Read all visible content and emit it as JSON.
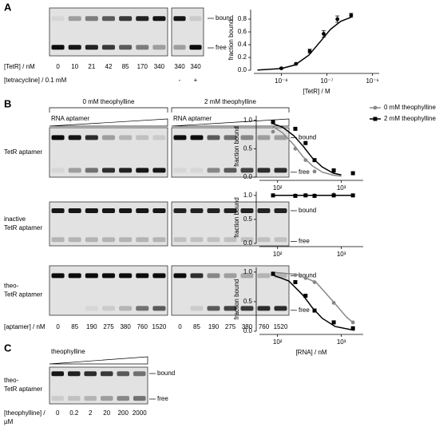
{
  "panel_labels": [
    "A",
    "B",
    "C"
  ],
  "gel_a": {
    "bound": "bound",
    "free": "free",
    "tetr_label": "[TetR] / nM",
    "tetr_lanes": [
      "0",
      "10",
      "21",
      "42",
      "85",
      "170",
      "340",
      "340",
      "340"
    ],
    "tet_label": "[tetracycline] / 0.1 mM",
    "tet_lanes": [
      "-",
      "+"
    ]
  },
  "gel_b": {
    "conditions": [
      "0 mM theophylline",
      "2 mM theophylline"
    ],
    "ramp_label": "RNA aptamer",
    "bound": "bound",
    "free": "free",
    "rows": [
      [
        "TetR aptamer"
      ],
      [
        "inactive",
        "TetR aptamer"
      ],
      [
        "theo-",
        "TetR aptamer"
      ]
    ],
    "lanes_label": "[aptamer] / nM",
    "lanes": [
      "0",
      "85",
      "190",
      "275",
      "380",
      "760",
      "1520"
    ]
  },
  "gel_c": {
    "ramp_label": "theophylline",
    "row": [
      "theo-",
      "TetR aptamer"
    ],
    "bound": "bound",
    "free": "free",
    "lanes_label": [
      "[theophylline] /",
      "µM"
    ],
    "lanes": [
      "0",
      "0.2",
      "2",
      "20",
      "200",
      "2000"
    ]
  },
  "chart_data": [
    {
      "type": "scatter",
      "xlabel": "[TetR] / M",
      "ylabel": "fraction bound",
      "xscale": "log",
      "xlim": [
        2.5e-09,
        1.4e-06
      ],
      "ylim": [
        0,
        0.95
      ],
      "xticks": [
        {
          "value": 1e-08,
          "label": "10⁻⁸"
        },
        {
          "value": 1e-07,
          "label": "10⁻⁷"
        },
        {
          "value": 1e-06,
          "label": "10⁻⁶"
        }
      ],
      "yticks": [
        {
          "value": 0,
          "label": "0.0"
        },
        0.2,
        0.4,
        0.6,
        0.8
      ],
      "x": [
        1e-08,
        2.1e-08,
        4.2e-08,
        8.5e-08,
        1.7e-07,
        3.4e-07
      ],
      "values": [
        0.03,
        0.1,
        0.3,
        0.57,
        0.8,
        0.86
      ],
      "errors": [
        0.01,
        0.01,
        0.03,
        0.05,
        0.05,
        0.03
      ],
      "color": "#000000",
      "marker": "circle",
      "fit": {
        "x": [
          3e-09,
          1e-08,
          2e-08,
          4e-08,
          7e-08,
          1.2e-07,
          2e-07,
          3.4e-07
        ],
        "values": [
          0.003,
          0.026,
          0.083,
          0.235,
          0.44,
          0.64,
          0.765,
          0.83
        ]
      }
    },
    {
      "type": "scatter",
      "ylabel": "fraction bound",
      "xscale": "log",
      "legend": "upper right",
      "xlim": [
        52,
        2200
      ],
      "ylim": [
        0,
        1.08
      ],
      "xticks": [
        {
          "value": 100,
          "label": "10²"
        },
        {
          "value": 1000,
          "label": "10³"
        }
      ],
      "yticks": [
        {
          "value": 0,
          "label": "0.0"
        },
        0.5,
        {
          "value": 1,
          "label": "1.0"
        }
      ],
      "x": [
        85,
        190,
        275,
        380,
        760,
        1520
      ],
      "series": [
        {
          "name": "0 mM theophylline",
          "color": "#888888",
          "marker": "circle",
          "values": [
            0.8,
            0.5,
            0.3,
            0.1,
            0.1,
            0.07
          ],
          "fit": {
            "x": [
              80,
              120,
              180,
              250,
              350,
              500,
              750,
              1000
            ],
            "values": [
              0.91,
              0.78,
              0.57,
              0.36,
              0.2,
              0.09,
              0.035,
              0.018
            ]
          }
        },
        {
          "name": "2 mM theophylline",
          "color": "#000000",
          "marker": "square",
          "values": [
            0.97,
            0.85,
            0.6,
            0.3,
            0.12,
            0.07
          ],
          "fit": {
            "x": [
              80,
              120,
              180,
              250,
              350,
              500,
              750,
              1000
            ],
            "values": [
              0.95,
              0.88,
              0.73,
              0.55,
              0.34,
              0.18,
              0.07,
              0.04
            ]
          }
        }
      ]
    },
    {
      "type": "scatter",
      "ylabel": "fraction bound",
      "xscale": "log",
      "xlim": [
        52,
        2200
      ],
      "ylim": [
        0,
        1.08
      ],
      "xticks": [
        {
          "value": 100,
          "label": "10²"
        },
        {
          "value": 1000,
          "label": "10³"
        }
      ],
      "yticks": [
        {
          "value": 0,
          "label": "0.0"
        },
        0.5,
        {
          "value": 1,
          "label": "1.0"
        }
      ],
      "x": [
        85,
        190,
        275,
        380,
        760,
        1520
      ],
      "series": [
        {
          "color": "#888888",
          "marker": "circle",
          "values": [
            1.0,
            1.0,
            1.0,
            1.0,
            1.02,
            1.0
          ],
          "fit": {
            "x": [
              80,
              1600
            ],
            "values": [
              1.0,
              1.0
            ]
          }
        },
        {
          "color": "#000000",
          "marker": "square",
          "values": [
            1.0,
            0.99,
            1.0,
            0.99,
            1.0,
            1.0
          ],
          "fit": {
            "x": [
              80,
              1600
            ],
            "values": [
              1.0,
              1.0
            ]
          }
        }
      ]
    },
    {
      "type": "scatter",
      "ylabel": "fraction bound",
      "xlabel": "[RNA] / nM",
      "xscale": "log",
      "xlim": [
        52,
        2200
      ],
      "ylim": [
        0,
        1.08
      ],
      "xticks": [
        {
          "value": 100,
          "label": "10²"
        },
        {
          "value": 1000,
          "label": "10³"
        }
      ],
      "yticks": [
        {
          "value": 0,
          "label": "0.0"
        },
        0.5,
        {
          "value": 1,
          "label": "1.0"
        }
      ],
      "x": [
        85,
        190,
        275,
        380,
        760,
        1520
      ],
      "series": [
        {
          "color": "#888888",
          "marker": "circle",
          "values": [
            0.98,
            0.95,
            0.9,
            0.83,
            0.48,
            0.15
          ],
          "fit": {
            "x": [
              80,
              200,
              400,
              750,
              1200,
              1600
            ],
            "values": [
              1.0,
              0.96,
              0.83,
              0.5,
              0.24,
              0.13
            ]
          }
        },
        {
          "color": "#000000",
          "marker": "square",
          "values": [
            0.97,
            0.83,
            0.6,
            0.35,
            0.15,
            0.05
          ],
          "fit": {
            "x": [
              80,
              150,
              250,
              350,
              500,
              800,
              1600
            ],
            "values": [
              0.96,
              0.85,
              0.61,
              0.4,
              0.22,
              0.08,
              0.015
            ]
          }
        }
      ]
    }
  ]
}
